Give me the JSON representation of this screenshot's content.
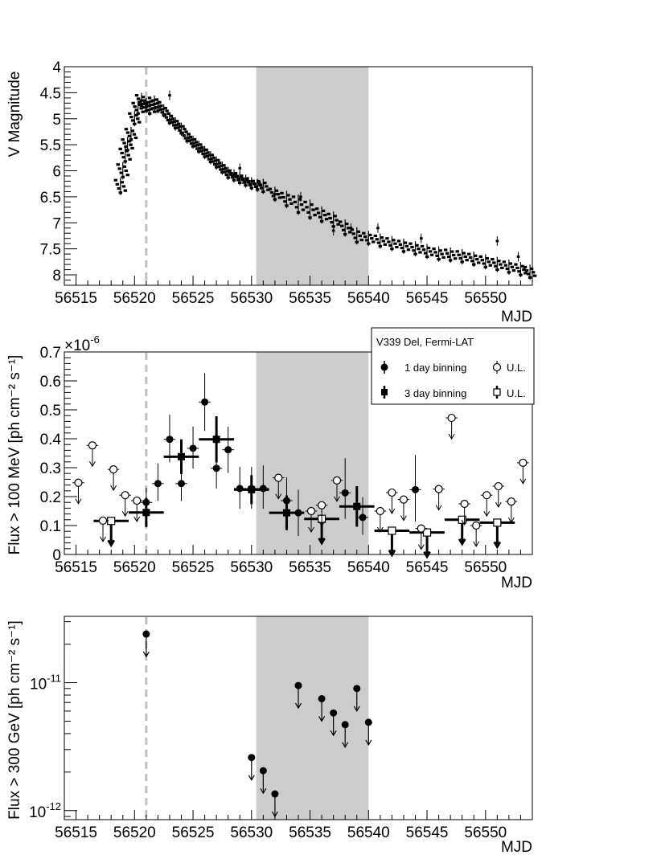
{
  "figure": {
    "shaded_band": {
      "x_range": [
        56530.4,
        56540
      ],
      "color": "#cccccc"
    },
    "dashed_marker": {
      "x": 56521,
      "color": "#c0c0c0"
    }
  },
  "chart_data": [
    {
      "type": "scatter",
      "panel": "optical",
      "xlabel": "MJD",
      "ylabel": "V Magnitude",
      "xlim": [
        56514,
        56554
      ],
      "ylim": [
        4,
        8.2
      ],
      "y_inverted": true,
      "x_ticks": [
        56515,
        56520,
        56525,
        56530,
        56535,
        56540,
        56545,
        56550
      ],
      "y_ticks": [
        4,
        4.5,
        5,
        5.5,
        6,
        6.5,
        7,
        7.5,
        8
      ],
      "y_tick_labels": [
        "4",
        "4.5",
        "5",
        "5.5",
        "6",
        "6.5",
        "7",
        "7.5",
        "8"
      ],
      "light_curve": {
        "x": [
          56518.8,
          56519.0,
          56519.2,
          56519.4,
          56519.7,
          56520.0,
          56520.3,
          56520.6,
          56521.0,
          56521.3,
          56521.7,
          56522.0,
          56522.5,
          56523.0,
          56523.5,
          56524.0,
          56524.5,
          56525.0,
          56525.5,
          56526.0,
          56526.5,
          56527.0,
          56527.5,
          56528.0,
          56528.5,
          56529.0,
          56529.5,
          56530.0,
          56530.5,
          56531.0,
          56532.0,
          56533.0,
          56534.0,
          56535.0,
          56536.0,
          56537.0,
          56538.0,
          56539.0,
          56540.0,
          56541.0,
          56542.0,
          56543.0,
          56544.0,
          56545.0,
          56546.0,
          56547.0,
          56548.0,
          56549.0,
          56550.0,
          56551.0,
          56552.0,
          56553.0,
          56553.8
        ],
        "y": [
          6.3,
          6.0,
          5.7,
          5.5,
          5.3,
          5.0,
          4.8,
          4.65,
          4.75,
          4.8,
          4.7,
          4.75,
          4.85,
          5.0,
          5.1,
          5.2,
          5.35,
          5.45,
          5.55,
          5.65,
          5.75,
          5.85,
          5.95,
          6.05,
          6.1,
          6.15,
          6.2,
          6.25,
          6.28,
          6.3,
          6.45,
          6.55,
          6.65,
          6.75,
          6.85,
          6.95,
          7.1,
          7.25,
          7.3,
          7.35,
          7.4,
          7.45,
          7.5,
          7.55,
          7.6,
          7.62,
          7.65,
          7.7,
          7.75,
          7.8,
          7.85,
          7.9,
          7.95
        ],
        "scatter_half": [
          0.12,
          0.12,
          0.12,
          0.1,
          0.1,
          0.1,
          0.1,
          0.1,
          0.1,
          0.1,
          0.1,
          0.1,
          0.08,
          0.08,
          0.08,
          0.08,
          0.08,
          0.08,
          0.08,
          0.08,
          0.08,
          0.08,
          0.08,
          0.08,
          0.08,
          0.08,
          0.08,
          0.08,
          0.08,
          0.1,
          0.1,
          0.12,
          0.15,
          0.15,
          0.12,
          0.12,
          0.12,
          0.12,
          0.1,
          0.1,
          0.1,
          0.1,
          0.1,
          0.1,
          0.1,
          0.1,
          0.1,
          0.1,
          0.1,
          0.1,
          0.1,
          0.1,
          0.1
        ]
      },
      "outliers": [
        {
          "x": 56523.0,
          "y": 4.55
        },
        {
          "x": 56532.0,
          "y": 6.45
        },
        {
          "x": 56534.2,
          "y": 6.5
        },
        {
          "x": 56538.5,
          "y": 7.1
        },
        {
          "x": 56540.8,
          "y": 7.1
        },
        {
          "x": 56544.5,
          "y": 7.3
        },
        {
          "x": 56551.0,
          "y": 7.35
        },
        {
          "x": 56552.8,
          "y": 7.65
        },
        {
          "x": 56537.0,
          "y": 7.15
        },
        {
          "x": 56529.0,
          "y": 5.95
        }
      ]
    },
    {
      "type": "scatter",
      "panel": "fermi",
      "xlabel": "MJD",
      "ylabel": "Flux > 100 MeV [ph cm⁻² s⁻¹]",
      "y_multiplier_label": "×10",
      "y_multiplier_exp": "-6",
      "xlim": [
        56514,
        56554
      ],
      "ylim": [
        0,
        0.7
      ],
      "x_ticks": [
        56515,
        56520,
        56525,
        56530,
        56535,
        56540,
        56545,
        56550
      ],
      "y_ticks": [
        0,
        0.1,
        0.2,
        0.3,
        0.4,
        0.5,
        0.6,
        0.7
      ],
      "y_tick_labels": [
        "0",
        "0.1",
        "0.2",
        "0.3",
        "0.4",
        "0.5",
        "0.6",
        "0.7"
      ],
      "legend": {
        "title": "V339 Del, Fermi-LAT",
        "entries": [
          "1 day binning",
          "U.L.",
          "3 day binning",
          "U.L."
        ],
        "placement": "top-right"
      },
      "series": [
        {
          "name": "1 day binning",
          "x": [
            56521,
            56522,
            56523,
            56524,
            56525,
            56526,
            56527,
            56528,
            56529,
            56530,
            56531,
            56533,
            56534,
            56538,
            56539.5,
            56544
          ],
          "y": [
            0.18,
            0.245,
            0.398,
            0.245,
            0.367,
            0.527,
            0.298,
            0.362,
            0.228,
            0.228,
            0.228,
            0.186,
            0.144,
            0.213,
            0.128,
            0.224
          ],
          "err_low": [
            0.04,
            0.06,
            0.08,
            0.06,
            0.07,
            0.1,
            0.07,
            0.08,
            0.07,
            0.07,
            0.07,
            0.07,
            0.08,
            0.09,
            0.06,
            0.11
          ],
          "err_high": [
            0.05,
            0.07,
            0.085,
            0.065,
            0.075,
            0.1,
            0.075,
            0.08,
            0.075,
            0.075,
            0.08,
            0.08,
            0.08,
            0.12,
            0.07,
            0.12
          ]
        },
        {
          "name": "U.L.",
          "x": [
            56515.2,
            56516.4,
            56517.3,
            56518.2,
            56519.2,
            56520.2,
            56532.3,
            56535.1,
            56536,
            56537.3,
            56541,
            56542,
            56543,
            56544.5,
            56546,
            56547.1,
            56548.2,
            56549.2,
            56550.1,
            56551.1,
            56552.2,
            56553.2
          ],
          "y": [
            0.248,
            0.377,
            0.117,
            0.294,
            0.205,
            0.186,
            0.265,
            0.15,
            0.17,
            0.256,
            0.15,
            0.214,
            0.19,
            0.09,
            0.226,
            0.472,
            0.175,
            0.1,
            0.205,
            0.236,
            0.183,
            0.317
          ]
        },
        {
          "name": "3 day binning",
          "x": [
            56521,
            56524,
            56527,
            56530,
            56533,
            56539
          ],
          "y": [
            0.145,
            0.338,
            0.398,
            0.224,
            0.144,
            0.166
          ],
          "err_low": [
            0.05,
            0.06,
            0.08,
            0.05,
            0.06,
            0.07
          ],
          "err_high": [
            0.05,
            0.06,
            0.08,
            0.05,
            0.06,
            0.07
          ],
          "xerr": 1.5
        },
        {
          "name": "U.L.",
          "x": [
            56518,
            56536,
            56542,
            56545,
            56548,
            56551
          ],
          "y": [
            0.116,
            0.123,
            0.082,
            0.076,
            0.12,
            0.11
          ],
          "xerr": 1.5
        }
      ]
    },
    {
      "type": "scatter",
      "panel": "vhe",
      "xlabel": "MJD",
      "ylabel": "Flux > 300 GeV [ph cm⁻² s⁻¹]",
      "log_scale_y": true,
      "xlim": [
        56514,
        56554
      ],
      "ylim": [
        8.5e-13,
        3.3e-11
      ],
      "x_ticks": [
        56515,
        56520,
        56525,
        56530,
        56535,
        56540,
        56545,
        56550
      ],
      "y_major_ticks": [
        {
          "value": 1e-11,
          "base": "10",
          "exp": "-11"
        },
        {
          "value": 1e-12,
          "base": "10",
          "exp": "-12"
        }
      ],
      "series": [
        {
          "name": "U.L.",
          "x": [
            56521,
            56530,
            56531,
            56532,
            56534,
            56536,
            56537,
            56538,
            56539,
            56540
          ],
          "y": [
            2.4e-11,
            2.6e-12,
            2.05e-12,
            1.35e-12,
            9.5e-12,
            7.5e-12,
            5.8e-12,
            4.7e-12,
            9e-12,
            4.9e-12
          ]
        }
      ]
    }
  ]
}
